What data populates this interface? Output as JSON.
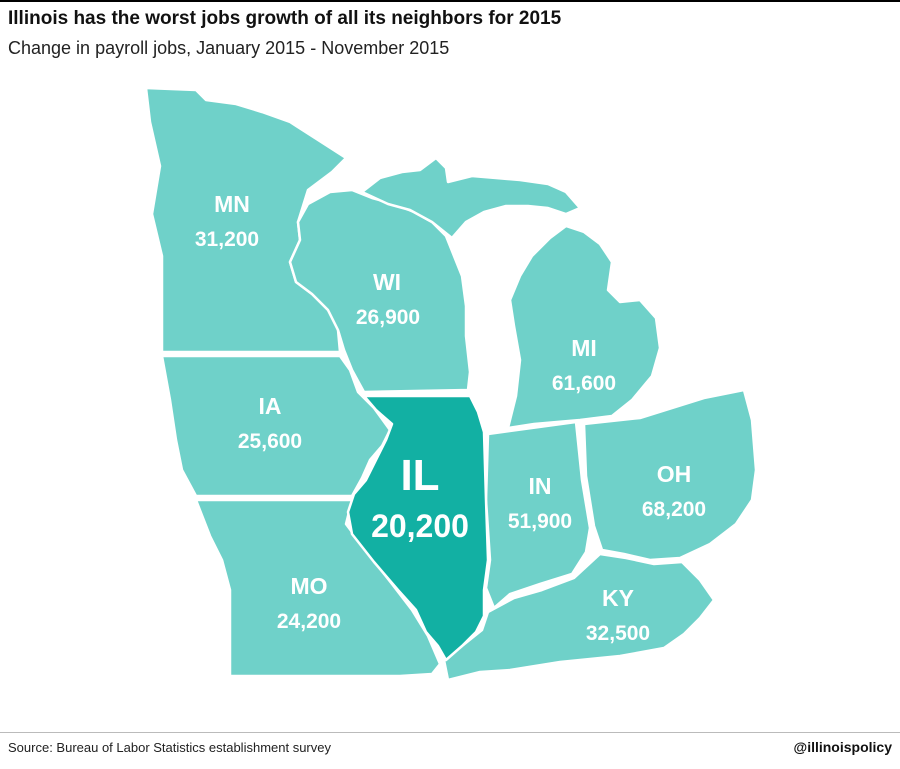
{
  "header": {
    "title": "Illinois has the worst jobs growth of all its neighbors for 2015",
    "subtitle": "Change in payroll jobs, January 2015 - November 2015"
  },
  "colors": {
    "neighbor_fill": "#6fd1c9",
    "illinois_fill": "#12b0a3",
    "border": "#ffffff"
  },
  "states": [
    {
      "id": "mn",
      "abbr": "MN",
      "value": "31,200",
      "jobs": 31200
    },
    {
      "id": "wi",
      "abbr": "WI",
      "value": "26,900",
      "jobs": 26900
    },
    {
      "id": "mi",
      "abbr": "MI",
      "value": "61,600",
      "jobs": 61600
    },
    {
      "id": "ia",
      "abbr": "IA",
      "value": "25,600",
      "jobs": 25600
    },
    {
      "id": "il",
      "abbr": "IL",
      "value": "20,200",
      "jobs": 20200
    },
    {
      "id": "in",
      "abbr": "IN",
      "value": "51,900",
      "jobs": 51900
    },
    {
      "id": "oh",
      "abbr": "OH",
      "value": "68,200",
      "jobs": 68200
    },
    {
      "id": "mo",
      "abbr": "MO",
      "value": "24,200",
      "jobs": 24200
    },
    {
      "id": "ky",
      "abbr": "KY",
      "value": "32,500",
      "jobs": 32500
    }
  ],
  "footer": {
    "source": "Source: Bureau of Labor Statistics establishment survey",
    "handle": "@illinoispolicy"
  }
}
